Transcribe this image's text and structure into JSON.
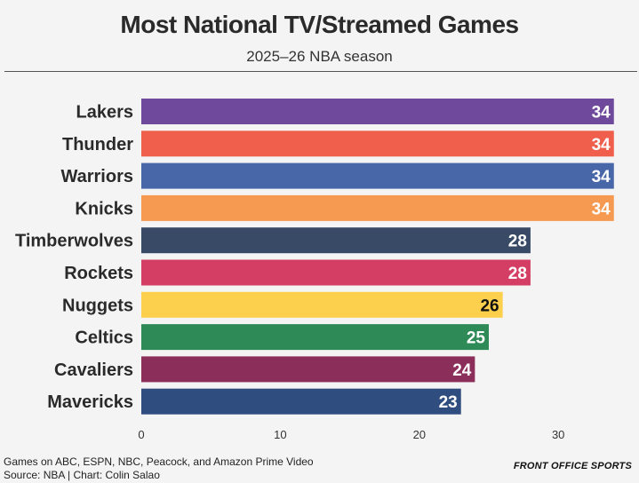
{
  "header": {
    "title": "Most National TV/Streamed Games",
    "subtitle": "2025–26 NBA season"
  },
  "footer": {
    "note": "Games on ABC, ESPN, NBC, Peacock, and Amazon Prime Video",
    "source": "Source: NBA | Chart: Colin Salao",
    "brand": "FRONT OFFICE SPORTS"
  },
  "chart_data": {
    "type": "bar",
    "orientation": "horizontal",
    "title": "Most National TV/Streamed Games",
    "subtitle": "2025–26 NBA season",
    "categories": [
      "Lakers",
      "Thunder",
      "Warriors",
      "Knicks",
      "Timberwolves",
      "Rockets",
      "Nuggets",
      "Celtics",
      "Cavaliers",
      "Mavericks"
    ],
    "values": [
      34,
      34,
      34,
      34,
      28,
      28,
      26,
      25,
      24,
      23
    ],
    "colors": [
      "#6f4a9c",
      "#ef5f4b",
      "#4867a8",
      "#f59a50",
      "#394a66",
      "#d43d64",
      "#fccf4d",
      "#2e8b57",
      "#8b2e5a",
      "#2f4d7e"
    ],
    "label_colors": [
      "#ffffff",
      "#ffffff",
      "#ffffff",
      "#ffffff",
      "#ffffff",
      "#ffffff",
      "#111111",
      "#ffffff",
      "#ffffff",
      "#ffffff"
    ],
    "xlim": [
      0,
      35
    ],
    "xticks": [
      0,
      10,
      20,
      30
    ],
    "grid": false,
    "legend": "none"
  }
}
